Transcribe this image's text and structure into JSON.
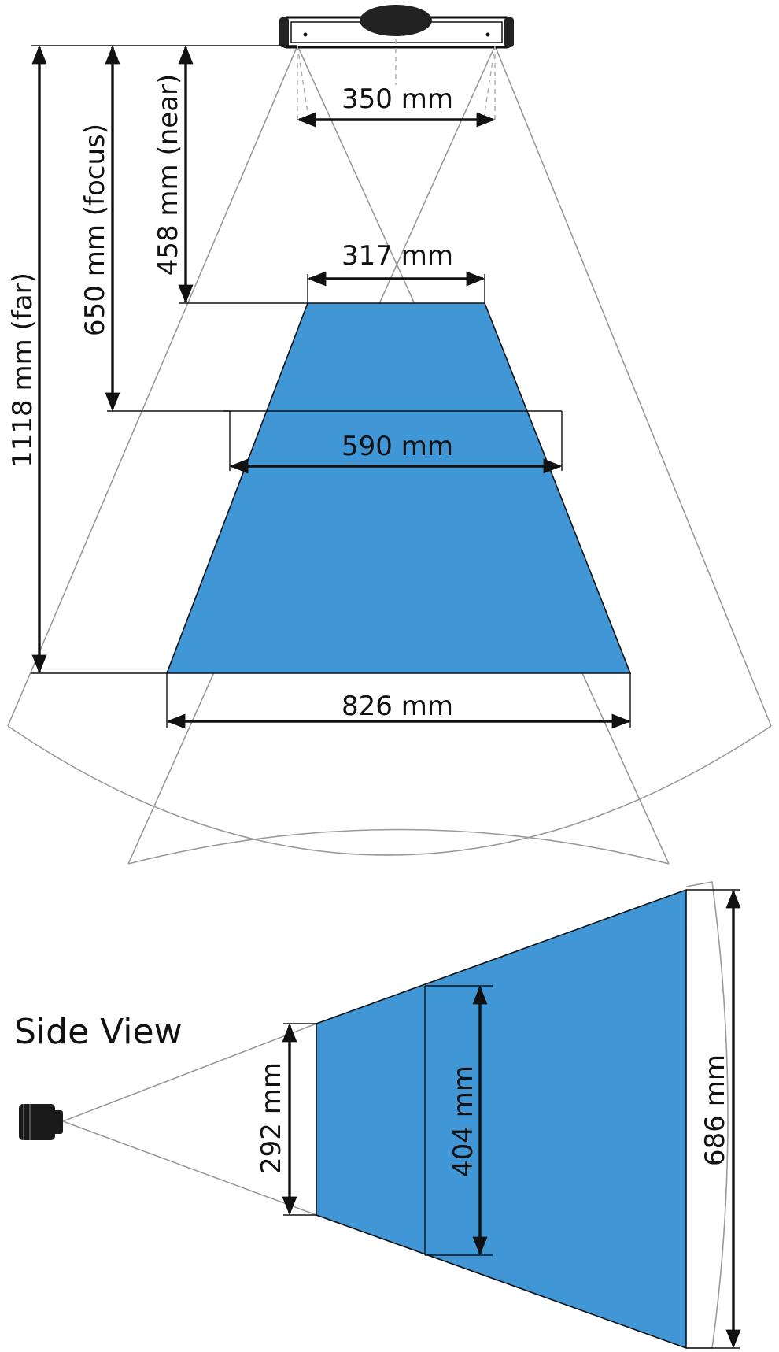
{
  "colors": {
    "field_fill": "#4196d5",
    "outline": "#111111",
    "guide": "#9a9a9a"
  },
  "icons": {
    "sensor_top": "sensor-top-icon",
    "sensor_side": "camera-side-icon"
  },
  "top_view": {
    "sensor_width": "350 mm",
    "near_width": "317 mm",
    "focus_width": "590 mm",
    "far_width": "826 mm",
    "near_distance": "458 mm (near)",
    "focus_distance": "650 mm (focus)",
    "far_distance": "1118 mm (far)"
  },
  "side_view": {
    "title": "Side View",
    "near_height": "292 mm",
    "focus_height": "404 mm",
    "far_height": "686 mm"
  }
}
